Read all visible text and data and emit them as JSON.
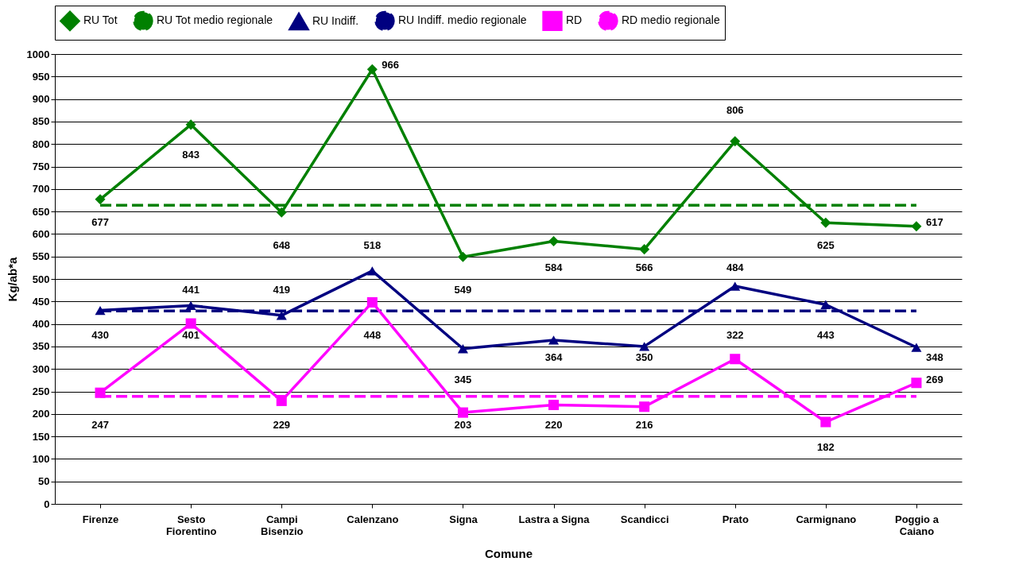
{
  "chart_data": {
    "type": "line",
    "xlabel": "Comune",
    "ylabel": "Kg/ab*a",
    "categories": [
      "Firenze",
      "Sesto\nFiorentino",
      "Campi\nBisenzio",
      "Calenzano",
      "Signa",
      "Lastra a Signa",
      "Scandicci",
      "Prato",
      "Carmignano",
      "Poggio a\nCaiano"
    ],
    "series": [
      {
        "name": "RU Tot",
        "color": "#008000",
        "marker": "diamond",
        "line_style": "solid",
        "values": [
          677,
          843,
          648,
          966,
          549,
          584,
          566,
          806,
          625,
          617
        ],
        "value_labels": [
          "677",
          "843",
          "648",
          "966",
          "549",
          "584",
          "566",
          "806",
          "625",
          "617"
        ]
      },
      {
        "name": "RU Tot medio regionale",
        "color": "#008000",
        "marker": "none",
        "line_style": "dashed",
        "values": [
          664,
          664,
          664,
          664,
          664,
          664,
          664,
          664,
          664,
          664
        ]
      },
      {
        "name": "RU Indiff.",
        "color": "#000080",
        "marker": "triangle",
        "line_style": "solid",
        "values": [
          430,
          441,
          419,
          518,
          345,
          364,
          350,
          484,
          443,
          348
        ],
        "value_labels": [
          "430",
          "441",
          "419",
          "518",
          "345",
          "364",
          "350",
          "484",
          "443",
          "348"
        ]
      },
      {
        "name": "RU Indiff. medio regionale",
        "color": "#000080",
        "marker": "none",
        "line_style": "dashed",
        "values": [
          429,
          429,
          429,
          429,
          429,
          429,
          429,
          429,
          429,
          429
        ]
      },
      {
        "name": "RD",
        "color": "#ff00ff",
        "marker": "square",
        "line_style": "solid",
        "values": [
          247,
          401,
          229,
          448,
          203,
          220,
          216,
          322,
          182,
          269
        ],
        "value_labels": [
          "247",
          "401",
          "229",
          "448",
          "203",
          "220",
          "216",
          "322",
          "182",
          "269"
        ]
      },
      {
        "name": "RD medio regionale",
        "color": "#ff00ff",
        "marker": "none",
        "line_style": "dashed",
        "values": [
          239,
          239,
          239,
          239,
          239,
          239,
          239,
          239,
          239,
          239
        ]
      }
    ],
    "ylim": [
      0,
      1000
    ],
    "yticks": [
      0,
      50,
      100,
      150,
      200,
      250,
      300,
      350,
      400,
      450,
      500,
      550,
      600,
      650,
      700,
      750,
      800,
      850,
      900,
      950,
      1000
    ],
    "grid": "y",
    "legend": "top"
  }
}
